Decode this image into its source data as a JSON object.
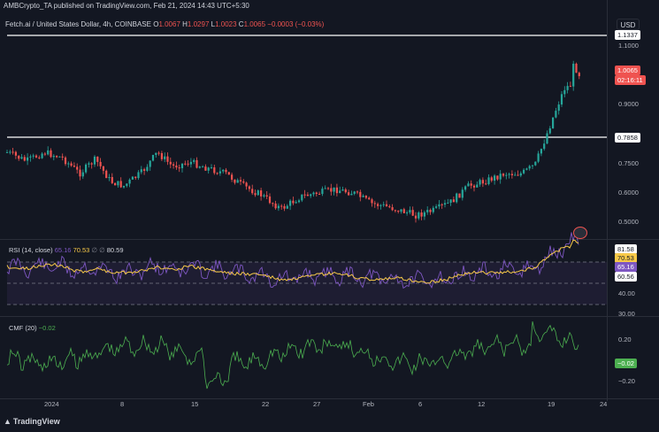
{
  "header": {
    "publish_text": "AMBCrypto_TA published on TradingView.com, Feb 21, 2024 14:43 UTC+5:30",
    "symbol": "Fetch.ai / United States Dollar, 4h, COINBASE",
    "ohlc": {
      "open_label": "O",
      "open": "1.0067",
      "high_label": "H",
      "high": "1.0297",
      "low_label": "L",
      "low": "1.0023",
      "close_label": "C",
      "close": "1.0065",
      "change": "−0.0003 (−0.03%)"
    },
    "currency_button": "USD"
  },
  "price_axis": {
    "labels": [
      "1.1000",
      "0.9000",
      "0.7500",
      "0.6000",
      "0.5000"
    ],
    "tags": [
      {
        "text": "1.1337",
        "bg": "#ffffff",
        "fg": "#131722"
      },
      {
        "text": "1.0065",
        "bg": "#ef5350",
        "fg": "#ffffff"
      },
      {
        "text": "02:16:11",
        "bg": "#ef5350",
        "fg": "#ffffff"
      },
      {
        "text": "0.7858",
        "bg": "#ffffff",
        "fg": "#131722"
      }
    ]
  },
  "rsi": {
    "title": "RSI (14, close)",
    "value1": "65.16",
    "value2": "70.53",
    "extra1": "∅",
    "extra2": "∅",
    "value3": "80.59",
    "axis_labels": [
      "30.00",
      "40.00"
    ],
    "tags": [
      {
        "text": "81.58",
        "bg": "#ffffff",
        "fg": "#131722"
      },
      {
        "text": "70.53",
        "bg": "#f7c948",
        "fg": "#131722"
      },
      {
        "text": "65.16",
        "bg": "#7e57c2",
        "fg": "#ffffff"
      },
      {
        "text": "60.56",
        "bg": "#ffffff",
        "fg": "#131722"
      }
    ]
  },
  "cmf": {
    "title": "CMF (20)",
    "value": "−0.02",
    "axis_labels": [
      "0.20",
      "−0.20"
    ],
    "tag": {
      "text": "−0.02",
      "bg": "#4caf50",
      "fg": "#ffffff"
    }
  },
  "time_axis": {
    "labels": [
      "2024",
      "8",
      "15",
      "22",
      "27",
      "Feb",
      "6",
      "12",
      "19",
      "24"
    ]
  },
  "branding": {
    "icon": "tradingview-logo-icon",
    "text": "TradingView"
  },
  "colors": {
    "background": "#131722",
    "up": "#26a69a",
    "down": "#ef5350",
    "rsi_line": "#7e57c2",
    "rsi_ma": "#f7c948",
    "cmf_line": "#4caf50",
    "hline": "#ffffff"
  }
}
